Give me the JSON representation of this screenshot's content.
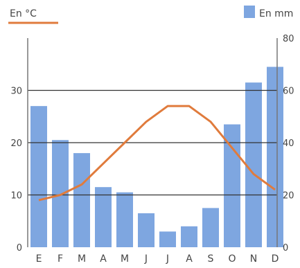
{
  "chart_data": {
    "type": "bar+line",
    "months": [
      "E",
      "F",
      "M",
      "A",
      "M",
      "J",
      "J",
      "A",
      "S",
      "O",
      "N",
      "D"
    ],
    "temperature_label": "En °C",
    "precipitation_label": "En mm",
    "temperature_c": [
      9,
      10,
      12,
      16,
      20,
      24,
      27,
      27,
      24,
      19,
      14,
      11
    ],
    "precipitation_mm": [
      54,
      41,
      36,
      23,
      21,
      13,
      6,
      8,
      15,
      47,
      63,
      69
    ],
    "left_axis": {
      "min": 0,
      "max": 40,
      "ticks": [
        0,
        10,
        20,
        30
      ]
    },
    "right_axis": {
      "min": 0,
      "max": 80,
      "ticks": [
        0,
        20,
        40,
        60,
        80
      ]
    },
    "gridlines": [
      10,
      20,
      30
    ],
    "colors": {
      "bars": "#7ea6e0",
      "line": "#e07b3c",
      "grid": "#333333",
      "axis": "#777777"
    }
  }
}
